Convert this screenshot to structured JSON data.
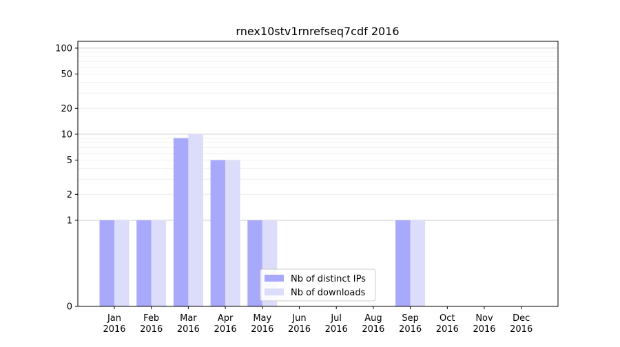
{
  "chart_data": {
    "type": "bar",
    "title": "rnex10stv1rnrefseq7cdf 2016",
    "xlabel": "",
    "ylabel": "",
    "categories": [
      "Jan\n2016",
      "Feb\n2016",
      "Mar\n2016",
      "Apr\n2016",
      "May\n2016",
      "Jun\n2016",
      "Jul\n2016",
      "Aug\n2016",
      "Sep\n2016",
      "Oct\n2016",
      "Nov\n2016",
      "Dec\n2016"
    ],
    "series": [
      {
        "name": "Nb of distinct IPs",
        "color": "#a9a9fb",
        "values": [
          1,
          1,
          9,
          5,
          1,
          0,
          0,
          0,
          1,
          0,
          0,
          0
        ]
      },
      {
        "name": "Nb of downloads",
        "color": "#dcdcfb",
        "values": [
          1,
          1,
          10,
          5,
          1,
          0,
          0,
          0,
          1,
          0,
          0,
          0
        ]
      }
    ],
    "yscale": "symlog",
    "yticks": [
      0,
      1,
      2,
      5,
      10,
      20,
      50,
      100
    ],
    "ylim": [
      0,
      120
    ],
    "grid": true,
    "legend_position": "lower-center"
  }
}
